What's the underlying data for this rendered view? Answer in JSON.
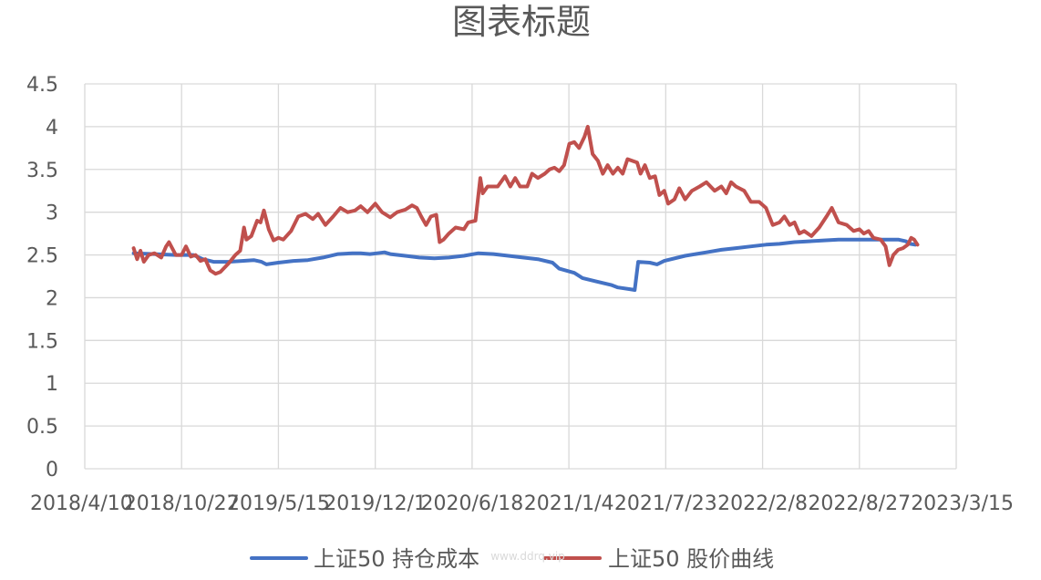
{
  "chart_data": {
    "type": "line",
    "title": "图表标题",
    "xlabel": "",
    "ylabel": "",
    "x_tick_labels": [
      "2018/4/10",
      "2018/10/27",
      "2019/5/15",
      "2019/12/1",
      "2020/6/18",
      "2021/1/4",
      "2021/7/23",
      "2022/2/8",
      "2022/8/27",
      "2023/3/15"
    ],
    "x_range": [
      "2018/4/10",
      "2023/3/15"
    ],
    "y_ticks": [
      "0",
      "0.5",
      "1",
      "1.5",
      "2",
      "2.5",
      "3",
      "3.5",
      "4",
      "4.5"
    ],
    "ylim": [
      0,
      4.5
    ],
    "grid": true,
    "legend_position": "bottom",
    "watermark": "www.ddrq.vip",
    "series": [
      {
        "name": "上证50 持仓成本",
        "color": "#4472C4",
        "points": [
          [
            "2018/7/20",
            2.52
          ],
          [
            "2018/9/1",
            2.51
          ],
          [
            "2018/10/15",
            2.5
          ],
          [
            "2018/11/20",
            2.5
          ],
          [
            "2018/12/10",
            2.45
          ],
          [
            "2019/1/1",
            2.42
          ],
          [
            "2019/2/1",
            2.42
          ],
          [
            "2019/3/1",
            2.43
          ],
          [
            "2019/3/25",
            2.44
          ],
          [
            "2019/4/10",
            2.42
          ],
          [
            "2019/4/20",
            2.39
          ],
          [
            "2019/5/15",
            2.41
          ],
          [
            "2019/6/15",
            2.43
          ],
          [
            "2019/7/15",
            2.44
          ],
          [
            "2019/8/15",
            2.47
          ],
          [
            "2019/9/15",
            2.51
          ],
          [
            "2019/10/15",
            2.52
          ],
          [
            "2019/11/1",
            2.52
          ],
          [
            "2019/11/20",
            2.51
          ],
          [
            "2019/12/5",
            2.52
          ],
          [
            "2019/12/20",
            2.53
          ],
          [
            "2020/1/1",
            2.51
          ],
          [
            "2020/2/1",
            2.49
          ],
          [
            "2020/3/1",
            2.47
          ],
          [
            "2020/4/1",
            2.46
          ],
          [
            "2020/5/1",
            2.47
          ],
          [
            "2020/6/1",
            2.49
          ],
          [
            "2020/7/1",
            2.52
          ],
          [
            "2020/8/1",
            2.51
          ],
          [
            "2020/9/1",
            2.49
          ],
          [
            "2020/10/1",
            2.47
          ],
          [
            "2020/11/1",
            2.45
          ],
          [
            "2020/12/1",
            2.41
          ],
          [
            "2020/12/15",
            2.34
          ],
          [
            "2021/1/15",
            2.29
          ],
          [
            "2021/2/1",
            2.23
          ],
          [
            "2021/3/1",
            2.19
          ],
          [
            "2021/4/1",
            2.15
          ],
          [
            "2021/4/15",
            2.12
          ],
          [
            "2021/5/10",
            2.1
          ],
          [
            "2021/5/20",
            2.09
          ],
          [
            "2021/5/27",
            2.42
          ],
          [
            "2021/6/20",
            2.41
          ],
          [
            "2021/7/5",
            2.39
          ],
          [
            "2021/7/20",
            2.43
          ],
          [
            "2021/9/1",
            2.49
          ],
          [
            "2021/10/15",
            2.53
          ],
          [
            "2021/11/15",
            2.56
          ],
          [
            "2021/12/15",
            2.58
          ],
          [
            "2022/1/15",
            2.6
          ],
          [
            "2022/2/15",
            2.62
          ],
          [
            "2022/3/15",
            2.63
          ],
          [
            "2022/4/15",
            2.65
          ],
          [
            "2022/5/15",
            2.66
          ],
          [
            "2022/6/15",
            2.67
          ],
          [
            "2022/7/15",
            2.68
          ],
          [
            "2022/8/15",
            2.68
          ],
          [
            "2022/9/15",
            2.68
          ],
          [
            "2022/10/15",
            2.68
          ],
          [
            "2022/11/15",
            2.68
          ],
          [
            "2022/12/1",
            2.66
          ],
          [
            "2022/12/10",
            2.63
          ],
          [
            "2022/12/20",
            2.62
          ]
        ]
      },
      {
        "name": "上证50 股价曲线",
        "color": "#C0504D",
        "points": [
          [
            "2018/7/20",
            2.58
          ],
          [
            "2018/7/27",
            2.45
          ],
          [
            "2018/8/3",
            2.55
          ],
          [
            "2018/8/10",
            2.42
          ],
          [
            "2018/8/20",
            2.5
          ],
          [
            "2018/9/1",
            2.52
          ],
          [
            "2018/9/15",
            2.47
          ],
          [
            "2018/9/25",
            2.6
          ],
          [
            "2018/10/1",
            2.65
          ],
          [
            "2018/10/15",
            2.5
          ],
          [
            "2018/10/27",
            2.5
          ],
          [
            "2018/11/5",
            2.6
          ],
          [
            "2018/11/15",
            2.48
          ],
          [
            "2018/11/25",
            2.5
          ],
          [
            "2018/12/5",
            2.43
          ],
          [
            "2018/12/15",
            2.45
          ],
          [
            "2018/12/25",
            2.32
          ],
          [
            "2019/1/5",
            2.28
          ],
          [
            "2019/1/15",
            2.3
          ],
          [
            "2019/2/1",
            2.4
          ],
          [
            "2019/2/15",
            2.5
          ],
          [
            "2019/2/25",
            2.55
          ],
          [
            "2019/3/5",
            2.82
          ],
          [
            "2019/3/10",
            2.68
          ],
          [
            "2019/3/20",
            2.72
          ],
          [
            "2019/4/1",
            2.9
          ],
          [
            "2019/4/8",
            2.88
          ],
          [
            "2019/4/15",
            3.02
          ],
          [
            "2019/4/25",
            2.8
          ],
          [
            "2019/5/5",
            2.67
          ],
          [
            "2019/5/15",
            2.7
          ],
          [
            "2019/5/25",
            2.68
          ],
          [
            "2019/6/10",
            2.78
          ],
          [
            "2019/6/25",
            2.95
          ],
          [
            "2019/7/10",
            2.98
          ],
          [
            "2019/7/25",
            2.92
          ],
          [
            "2019/8/5",
            2.98
          ],
          [
            "2019/8/20",
            2.85
          ],
          [
            "2019/9/5",
            2.95
          ],
          [
            "2019/9/20",
            3.05
          ],
          [
            "2019/10/5",
            3.0
          ],
          [
            "2019/10/20",
            3.02
          ],
          [
            "2019/11/1",
            3.07
          ],
          [
            "2019/11/15",
            3.0
          ],
          [
            "2019/12/1",
            3.1
          ],
          [
            "2019/12/15",
            3.0
          ],
          [
            "2020/1/1",
            2.94
          ],
          [
            "2020/1/15",
            3.0
          ],
          [
            "2020/2/1",
            3.03
          ],
          [
            "2020/2/15",
            3.08
          ],
          [
            "2020/2/25",
            3.05
          ],
          [
            "2020/3/5",
            2.95
          ],
          [
            "2020/3/15",
            2.85
          ],
          [
            "2020/3/25",
            2.95
          ],
          [
            "2020/4/5",
            2.97
          ],
          [
            "2020/4/12",
            2.65
          ],
          [
            "2020/4/20",
            2.68
          ],
          [
            "2020/5/1",
            2.75
          ],
          [
            "2020/5/15",
            2.82
          ],
          [
            "2020/6/1",
            2.8
          ],
          [
            "2020/6/10",
            2.88
          ],
          [
            "2020/6/25",
            2.9
          ],
          [
            "2020/7/5",
            3.4
          ],
          [
            "2020/7/10",
            3.22
          ],
          [
            "2020/7/20",
            3.3
          ],
          [
            "2020/8/10",
            3.3
          ],
          [
            "2020/8/25",
            3.42
          ],
          [
            "2020/9/5",
            3.3
          ],
          [
            "2020/9/15",
            3.4
          ],
          [
            "2020/9/25",
            3.3
          ],
          [
            "2020/10/10",
            3.3
          ],
          [
            "2020/10/20",
            3.45
          ],
          [
            "2020/11/1",
            3.4
          ],
          [
            "2020/11/15",
            3.45
          ],
          [
            "2020/11/25",
            3.5
          ],
          [
            "2020/12/5",
            3.52
          ],
          [
            "2020/12/15",
            3.48
          ],
          [
            "2020/12/25",
            3.55
          ],
          [
            "2021/1/5",
            3.8
          ],
          [
            "2021/1/15",
            3.82
          ],
          [
            "2021/1/25",
            3.75
          ],
          [
            "2021/2/5",
            3.88
          ],
          [
            "2021/2/12",
            4.0
          ],
          [
            "2021/2/22",
            3.68
          ],
          [
            "2021/3/5",
            3.6
          ],
          [
            "2021/3/15",
            3.45
          ],
          [
            "2021/3/25",
            3.55
          ],
          [
            "2021/4/5",
            3.45
          ],
          [
            "2021/4/15",
            3.52
          ],
          [
            "2021/4/25",
            3.45
          ],
          [
            "2021/5/5",
            3.62
          ],
          [
            "2021/5/15",
            3.6
          ],
          [
            "2021/5/25",
            3.58
          ],
          [
            "2021/6/1",
            3.45
          ],
          [
            "2021/6/10",
            3.55
          ],
          [
            "2021/6/20",
            3.4
          ],
          [
            "2021/7/1",
            3.42
          ],
          [
            "2021/7/10",
            3.2
          ],
          [
            "2021/7/20",
            3.25
          ],
          [
            "2021/7/28",
            3.1
          ],
          [
            "2021/8/10",
            3.15
          ],
          [
            "2021/8/20",
            3.28
          ],
          [
            "2021/9/1",
            3.15
          ],
          [
            "2021/9/15",
            3.25
          ],
          [
            "2021/10/1",
            3.3
          ],
          [
            "2021/10/15",
            3.35
          ],
          [
            "2021/11/1",
            3.25
          ],
          [
            "2021/11/15",
            3.3
          ],
          [
            "2021/11/25",
            3.22
          ],
          [
            "2021/12/5",
            3.35
          ],
          [
            "2021/12/15",
            3.3
          ],
          [
            "2022/1/1",
            3.25
          ],
          [
            "2022/1/15",
            3.12
          ],
          [
            "2022/2/1",
            3.12
          ],
          [
            "2022/2/15",
            3.05
          ],
          [
            "2022/3/1",
            2.85
          ],
          [
            "2022/3/15",
            2.88
          ],
          [
            "2022/3/25",
            2.95
          ],
          [
            "2022/4/5",
            2.85
          ],
          [
            "2022/4/15",
            2.88
          ],
          [
            "2022/4/25",
            2.75
          ],
          [
            "2022/5/5",
            2.78
          ],
          [
            "2022/5/20",
            2.72
          ],
          [
            "2022/6/5",
            2.82
          ],
          [
            "2022/6/20",
            2.95
          ],
          [
            "2022/7/1",
            3.05
          ],
          [
            "2022/7/15",
            2.88
          ],
          [
            "2022/8/1",
            2.85
          ],
          [
            "2022/8/15",
            2.78
          ],
          [
            "2022/8/27",
            2.8
          ],
          [
            "2022/9/5",
            2.75
          ],
          [
            "2022/9/15",
            2.78
          ],
          [
            "2022/9/25",
            2.7
          ],
          [
            "2022/10/10",
            2.68
          ],
          [
            "2022/10/20",
            2.6
          ],
          [
            "2022/10/28",
            2.38
          ],
          [
            "2022/11/5",
            2.5
          ],
          [
            "2022/11/15",
            2.56
          ],
          [
            "2022/11/25",
            2.58
          ],
          [
            "2022/12/5",
            2.62
          ],
          [
            "2022/12/12",
            2.7
          ],
          [
            "2022/12/18",
            2.68
          ],
          [
            "2022/12/25",
            2.62
          ]
        ]
      }
    ]
  }
}
